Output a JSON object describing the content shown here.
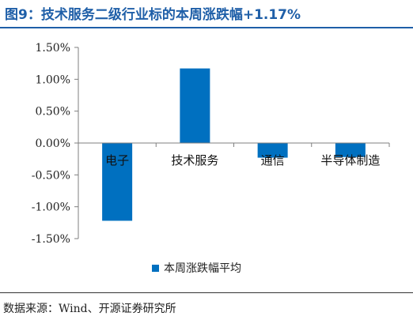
{
  "header": {
    "title": "图9：技术服务二级行业标的本周涨跌幅+1.17%"
  },
  "footer": {
    "source": "数据来源：Wind、开源证券研究所"
  },
  "colors": {
    "accent": "#1f5fa8",
    "bar": "#0070c0",
    "axis": "#7f7f7f"
  },
  "chart_data": {
    "type": "bar",
    "title": "",
    "xlabel": "",
    "ylabel": "",
    "categories": [
      "电子",
      "技术服务",
      "通信",
      "半导体制造"
    ],
    "series": [
      {
        "name": "本周涨跌幅平均",
        "values": [
          -1.22,
          1.17,
          -0.23,
          -0.22
        ]
      }
    ],
    "yticks": [
      {
        "value": 1.5,
        "label": "1.50%"
      },
      {
        "value": 1.0,
        "label": "1.00%"
      },
      {
        "value": 0.5,
        "label": "0.50%"
      },
      {
        "value": 0.0,
        "label": "0.00%"
      },
      {
        "value": -0.5,
        "label": "-0.50%"
      },
      {
        "value": -1.0,
        "label": "-1.00%"
      },
      {
        "value": -1.5,
        "label": "-1.50%"
      }
    ],
    "ylim": [
      -1.5,
      1.5
    ],
    "grid": false,
    "legend": "bottom"
  }
}
